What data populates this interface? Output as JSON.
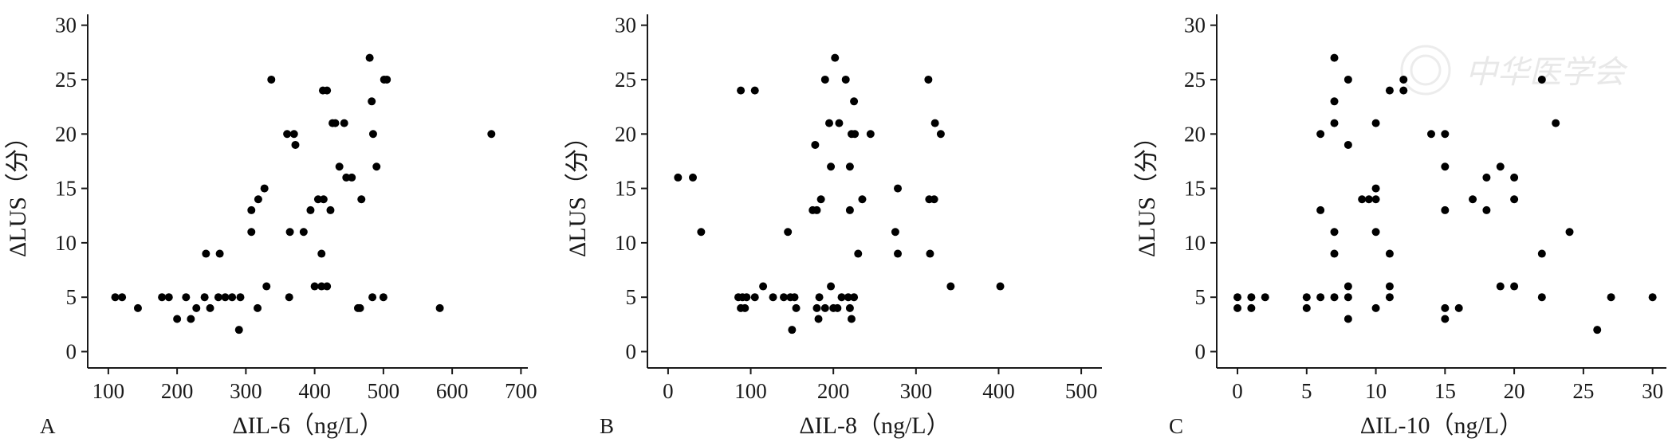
{
  "watermark": {
    "text": "中华医学会",
    "logo_name": "cma-seal-logo"
  },
  "chart_data": [
    {
      "type": "scatter",
      "panel": "A",
      "xlabel": "ΔIL-6（ng/L）",
      "ylabel": "ΔLUS（分）",
      "xlim": [
        70,
        710
      ],
      "ylim": [
        -1.5,
        31
      ],
      "xticks": [
        100,
        200,
        300,
        400,
        500,
        600,
        700
      ],
      "yticks": [
        0,
        5,
        10,
        15,
        20,
        25,
        30
      ],
      "grid": false,
      "points": [
        [
          110,
          5
        ],
        [
          120,
          5
        ],
        [
          143,
          4
        ],
        [
          178,
          5
        ],
        [
          188,
          5
        ],
        [
          200,
          3
        ],
        [
          213,
          5
        ],
        [
          220,
          3
        ],
        [
          228,
          4
        ],
        [
          240,
          5
        ],
        [
          242,
          9
        ],
        [
          248,
          4
        ],
        [
          260,
          5
        ],
        [
          262,
          9
        ],
        [
          270,
          5
        ],
        [
          280,
          5
        ],
        [
          290,
          2
        ],
        [
          292,
          5
        ],
        [
          308,
          11
        ],
        [
          308,
          13
        ],
        [
          317,
          4
        ],
        [
          318,
          14
        ],
        [
          327,
          15
        ],
        [
          330,
          6
        ],
        [
          337,
          25
        ],
        [
          360,
          20
        ],
        [
          363,
          5
        ],
        [
          364,
          11
        ],
        [
          370,
          20
        ],
        [
          372,
          19
        ],
        [
          384,
          11
        ],
        [
          394,
          13
        ],
        [
          400,
          6
        ],
        [
          405,
          14
        ],
        [
          410,
          6
        ],
        [
          410,
          9
        ],
        [
          412,
          24
        ],
        [
          413,
          14
        ],
        [
          418,
          24
        ],
        [
          418,
          6
        ],
        [
          423,
          13
        ],
        [
          426,
          21
        ],
        [
          430,
          21
        ],
        [
          436,
          17
        ],
        [
          443,
          21
        ],
        [
          446,
          16
        ],
        [
          454,
          16
        ],
        [
          463,
          4
        ],
        [
          466,
          4
        ],
        [
          468,
          14
        ],
        [
          480,
          27
        ],
        [
          483,
          23
        ],
        [
          484,
          5
        ],
        [
          485,
          20
        ],
        [
          490,
          17
        ],
        [
          500,
          5
        ],
        [
          501,
          25
        ],
        [
          505,
          25
        ],
        [
          582,
          4
        ],
        [
          657,
          20
        ]
      ]
    },
    {
      "type": "scatter",
      "panel": "B",
      "xlabel": "ΔIL-8（ng/L）",
      "ylabel": "ΔLUS（分）",
      "xlim": [
        -25,
        525
      ],
      "ylim": [
        -1.5,
        31
      ],
      "xticks": [
        0,
        100,
        200,
        300,
        400,
        500
      ],
      "yticks": [
        0,
        5,
        10,
        15,
        20,
        25,
        30
      ],
      "grid": false,
      "points": [
        [
          12,
          16
        ],
        [
          30,
          16
        ],
        [
          40,
          11
        ],
        [
          85,
          5
        ],
        [
          88,
          24
        ],
        [
          88,
          4
        ],
        [
          90,
          5
        ],
        [
          93,
          4
        ],
        [
          95,
          5
        ],
        [
          105,
          24
        ],
        [
          105,
          5
        ],
        [
          115,
          6
        ],
        [
          127,
          5
        ],
        [
          140,
          5
        ],
        [
          145,
          11
        ],
        [
          148,
          5
        ],
        [
          150,
          2
        ],
        [
          153,
          5
        ],
        [
          155,
          4
        ],
        [
          175,
          13
        ],
        [
          178,
          19
        ],
        [
          180,
          4
        ],
        [
          180,
          13
        ],
        [
          182,
          3
        ],
        [
          183,
          5
        ],
        [
          185,
          14
        ],
        [
          190,
          25
        ],
        [
          190,
          4
        ],
        [
          195,
          21
        ],
        [
          197,
          17
        ],
        [
          197,
          6
        ],
        [
          200,
          4
        ],
        [
          202,
          27
        ],
        [
          205,
          4
        ],
        [
          207,
          21
        ],
        [
          210,
          5
        ],
        [
          215,
          25
        ],
        [
          218,
          5
        ],
        [
          220,
          13
        ],
        [
          220,
          4
        ],
        [
          220,
          17
        ],
        [
          222,
          3
        ],
        [
          222,
          20
        ],
        [
          225,
          5
        ],
        [
          225,
          23
        ],
        [
          226,
          20
        ],
        [
          230,
          9
        ],
        [
          235,
          14
        ],
        [
          245,
          20
        ],
        [
          275,
          11
        ],
        [
          278,
          15
        ],
        [
          278,
          9
        ],
        [
          315,
          25
        ],
        [
          316,
          14
        ],
        [
          317,
          9
        ],
        [
          323,
          21
        ],
        [
          322,
          14
        ],
        [
          330,
          20
        ],
        [
          342,
          6
        ],
        [
          402,
          6
        ]
      ]
    },
    {
      "type": "scatter",
      "panel": "C",
      "xlabel": "ΔIL-10（ng/L）",
      "ylabel": "ΔLUS（分）",
      "xlim": [
        -1.5,
        31
      ],
      "ylim": [
        -1.5,
        31
      ],
      "xticks": [
        0,
        5,
        10,
        15,
        20,
        25,
        30
      ],
      "yticks": [
        0,
        5,
        10,
        15,
        20,
        25,
        30
      ],
      "grid": false,
      "points": [
        [
          0,
          5
        ],
        [
          0,
          4
        ],
        [
          1,
          5
        ],
        [
          1,
          4
        ],
        [
          2,
          5
        ],
        [
          5,
          5
        ],
        [
          5,
          4
        ],
        [
          6,
          13
        ],
        [
          6,
          20
        ],
        [
          6,
          5
        ],
        [
          7,
          27
        ],
        [
          7,
          23
        ],
        [
          7,
          21
        ],
        [
          7,
          11
        ],
        [
          7,
          9
        ],
        [
          7,
          5
        ],
        [
          8,
          25
        ],
        [
          8,
          19
        ],
        [
          8,
          6
        ],
        [
          8,
          5
        ],
        [
          8,
          3
        ],
        [
          9,
          14
        ],
        [
          9.5,
          14
        ],
        [
          10,
          21
        ],
        [
          10,
          15
        ],
        [
          10,
          14
        ],
        [
          10,
          11
        ],
        [
          10,
          4
        ],
        [
          11,
          24
        ],
        [
          11,
          9
        ],
        [
          11,
          6
        ],
        [
          11,
          5
        ],
        [
          12,
          25
        ],
        [
          12,
          24
        ],
        [
          14,
          20
        ],
        [
          15,
          20
        ],
        [
          15,
          17
        ],
        [
          15,
          13
        ],
        [
          15,
          4
        ],
        [
          15,
          3
        ],
        [
          16,
          4
        ],
        [
          17,
          14
        ],
        [
          18,
          16
        ],
        [
          18,
          13
        ],
        [
          19,
          17
        ],
        [
          19,
          6
        ],
        [
          20,
          16
        ],
        [
          20,
          14
        ],
        [
          20,
          6
        ],
        [
          22,
          25
        ],
        [
          22,
          9
        ],
        [
          22,
          5
        ],
        [
          23,
          21
        ],
        [
          24,
          11
        ],
        [
          26,
          2
        ],
        [
          27,
          5
        ],
        [
          30,
          5
        ]
      ]
    }
  ]
}
